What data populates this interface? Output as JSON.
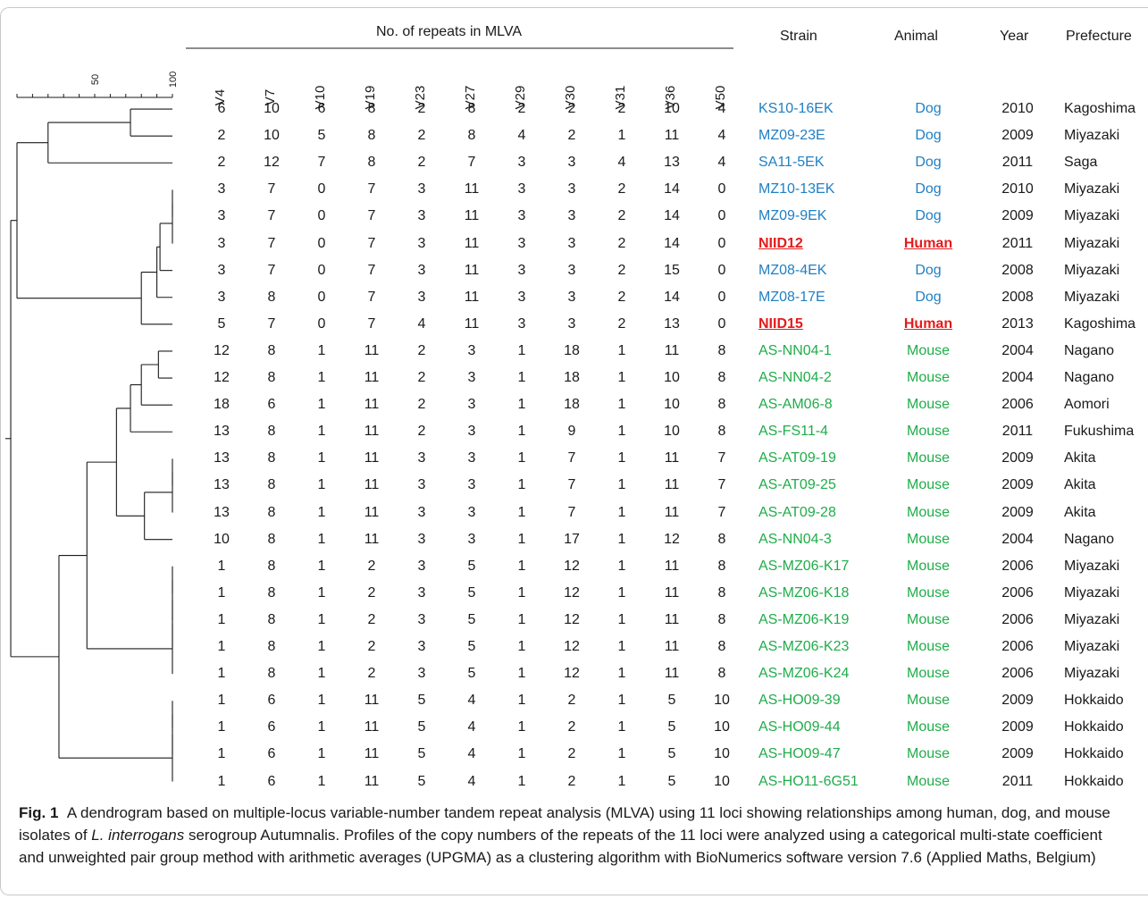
{
  "header": {
    "group_title": "No. of repeats in MLVA",
    "strain": "Strain",
    "animal": "Animal",
    "year": "Year",
    "prefecture": "Prefecture"
  },
  "scale": {
    "labels": [
      "50",
      "100"
    ]
  },
  "loci": [
    "V4",
    "V7",
    "V10",
    "V19",
    "V23",
    "V27",
    "V29",
    "V30",
    "V31",
    "V36",
    "V50"
  ],
  "colors": {
    "Dog": "#1f7fc4",
    "Human": "#e41b1b",
    "Mouse": "#1fad4a"
  },
  "rows": [
    {
      "values": [
        6,
        10,
        6,
        8,
        2,
        8,
        2,
        2,
        2,
        10,
        4
      ],
      "strain": "KS10-16EK",
      "animal": "Dog",
      "year": "2010",
      "prefecture": "Kagoshima"
    },
    {
      "values": [
        2,
        10,
        5,
        8,
        2,
        8,
        4,
        2,
        1,
        11,
        4
      ],
      "strain": "MZ09-23E",
      "animal": "Dog",
      "year": "2009",
      "prefecture": "Miyazaki"
    },
    {
      "values": [
        2,
        12,
        7,
        8,
        2,
        7,
        3,
        3,
        4,
        13,
        4
      ],
      "strain": "SA11-5EK",
      "animal": "Dog",
      "year": "2011",
      "prefecture": "Saga"
    },
    {
      "values": [
        3,
        7,
        0,
        7,
        3,
        11,
        3,
        3,
        2,
        14,
        0
      ],
      "strain": "MZ10-13EK",
      "animal": "Dog",
      "year": "2010",
      "prefecture": "Miyazaki"
    },
    {
      "values": [
        3,
        7,
        0,
        7,
        3,
        11,
        3,
        3,
        2,
        14,
        0
      ],
      "strain": "MZ09-9EK",
      "animal": "Dog",
      "year": "2009",
      "prefecture": "Miyazaki"
    },
    {
      "values": [
        3,
        7,
        0,
        7,
        3,
        11,
        3,
        3,
        2,
        14,
        0
      ],
      "strain": "NIID12",
      "animal": "Human",
      "year": "2011",
      "prefecture": "Miyazaki"
    },
    {
      "values": [
        3,
        7,
        0,
        7,
        3,
        11,
        3,
        3,
        2,
        15,
        0
      ],
      "strain": "MZ08-4EK",
      "animal": "Dog",
      "year": "2008",
      "prefecture": "Miyazaki"
    },
    {
      "values": [
        3,
        8,
        0,
        7,
        3,
        11,
        3,
        3,
        2,
        14,
        0
      ],
      "strain": "MZ08-17E",
      "animal": "Dog",
      "year": "2008",
      "prefecture": "Miyazaki"
    },
    {
      "values": [
        5,
        7,
        0,
        7,
        4,
        11,
        3,
        3,
        2,
        13,
        0
      ],
      "strain": "NIID15",
      "animal": "Human",
      "year": "2013",
      "prefecture": "Kagoshima"
    },
    {
      "values": [
        12,
        8,
        1,
        11,
        2,
        3,
        1,
        18,
        1,
        11,
        8
      ],
      "strain": "AS-NN04-1",
      "animal": "Mouse",
      "year": "2004",
      "prefecture": "Nagano"
    },
    {
      "values": [
        12,
        8,
        1,
        11,
        2,
        3,
        1,
        18,
        1,
        10,
        8
      ],
      "strain": "AS-NN04-2",
      "animal": "Mouse",
      "year": "2004",
      "prefecture": "Nagano"
    },
    {
      "values": [
        18,
        6,
        1,
        11,
        2,
        3,
        1,
        18,
        1,
        10,
        8
      ],
      "strain": "AS-AM06-8",
      "animal": "Mouse",
      "year": "2006",
      "prefecture": "Aomori"
    },
    {
      "values": [
        13,
        8,
        1,
        11,
        2,
        3,
        1,
        9,
        1,
        10,
        8
      ],
      "strain": "AS-FS11-4",
      "animal": "Mouse",
      "year": "2011",
      "prefecture": "Fukushima"
    },
    {
      "values": [
        13,
        8,
        1,
        11,
        3,
        3,
        1,
        7,
        1,
        11,
        7
      ],
      "strain": "AS-AT09-19",
      "animal": "Mouse",
      "year": "2009",
      "prefecture": "Akita"
    },
    {
      "values": [
        13,
        8,
        1,
        11,
        3,
        3,
        1,
        7,
        1,
        11,
        7
      ],
      "strain": "AS-AT09-25",
      "animal": "Mouse",
      "year": "2009",
      "prefecture": "Akita"
    },
    {
      "values": [
        13,
        8,
        1,
        11,
        3,
        3,
        1,
        7,
        1,
        11,
        7
      ],
      "strain": "AS-AT09-28",
      "animal": "Mouse",
      "year": "2009",
      "prefecture": "Akita"
    },
    {
      "values": [
        10,
        8,
        1,
        11,
        3,
        3,
        1,
        17,
        1,
        12,
        8
      ],
      "strain": "AS-NN04-3",
      "animal": "Mouse",
      "year": "2004",
      "prefecture": "Nagano"
    },
    {
      "values": [
        1,
        8,
        1,
        2,
        3,
        5,
        1,
        12,
        1,
        11,
        8
      ],
      "strain": "AS-MZ06-K17",
      "animal": "Mouse",
      "year": "2006",
      "prefecture": "Miyazaki"
    },
    {
      "values": [
        1,
        8,
        1,
        2,
        3,
        5,
        1,
        12,
        1,
        11,
        8
      ],
      "strain": "AS-MZ06-K18",
      "animal": "Mouse",
      "year": "2006",
      "prefecture": "Miyazaki"
    },
    {
      "values": [
        1,
        8,
        1,
        2,
        3,
        5,
        1,
        12,
        1,
        11,
        8
      ],
      "strain": "AS-MZ06-K19",
      "animal": "Mouse",
      "year": "2006",
      "prefecture": "Miyazaki"
    },
    {
      "values": [
        1,
        8,
        1,
        2,
        3,
        5,
        1,
        12,
        1,
        11,
        8
      ],
      "strain": "AS-MZ06-K23",
      "animal": "Mouse",
      "year": "2006",
      "prefecture": "Miyazaki"
    },
    {
      "values": [
        1,
        8,
        1,
        2,
        3,
        5,
        1,
        12,
        1,
        11,
        8
      ],
      "strain": "AS-MZ06-K24",
      "animal": "Mouse",
      "year": "2006",
      "prefecture": "Miyazaki"
    },
    {
      "values": [
        1,
        6,
        1,
        11,
        5,
        4,
        1,
        2,
        1,
        5,
        10
      ],
      "strain": "AS-HO09-39",
      "animal": "Mouse",
      "year": "2009",
      "prefecture": "Hokkaido"
    },
    {
      "values": [
        1,
        6,
        1,
        11,
        5,
        4,
        1,
        2,
        1,
        5,
        10
      ],
      "strain": "AS-HO09-44",
      "animal": "Mouse",
      "year": "2009",
      "prefecture": "Hokkaido"
    },
    {
      "values": [
        1,
        6,
        1,
        11,
        5,
        4,
        1,
        2,
        1,
        5,
        10
      ],
      "strain": "AS-HO09-47",
      "animal": "Mouse",
      "year": "2009",
      "prefecture": "Hokkaido"
    },
    {
      "values": [
        1,
        6,
        1,
        11,
        5,
        4,
        1,
        2,
        1,
        5,
        10
      ],
      "strain": "AS-HO11-6G51",
      "animal": "Mouse",
      "year": "2011",
      "prefecture": "Hokkaido"
    }
  ],
  "dendrogram": {
    "merges": [
      {
        "a": 0,
        "b": 1,
        "similarity": 73
      },
      {
        "a": 26,
        "b": 2,
        "similarity": 20
      },
      {
        "a": 3,
        "b": 4,
        "similarity": 100
      },
      {
        "a": 28,
        "b": 5,
        "similarity": 100
      },
      {
        "a": 29,
        "b": 6,
        "similarity": 92
      },
      {
        "a": 30,
        "b": 7,
        "similarity": 90
      },
      {
        "a": 31,
        "b": 8,
        "similarity": 80
      },
      {
        "a": 27,
        "b": 32,
        "similarity": 0
      },
      {
        "a": 9,
        "b": 10,
        "similarity": 91
      },
      {
        "a": 34,
        "b": 11,
        "similarity": 80
      },
      {
        "a": 35,
        "b": 12,
        "similarity": 73
      },
      {
        "a": 13,
        "b": 14,
        "similarity": 100
      },
      {
        "a": 37,
        "b": 15,
        "similarity": 100
      },
      {
        "a": 38,
        "b": 16,
        "similarity": 82
      },
      {
        "a": 36,
        "b": 39,
        "similarity": 64
      },
      {
        "a": 17,
        "b": 18,
        "similarity": 100
      },
      {
        "a": 41,
        "b": 19,
        "similarity": 100
      },
      {
        "a": 42,
        "b": 20,
        "similarity": 100
      },
      {
        "a": 43,
        "b": 21,
        "similarity": 100
      },
      {
        "a": 40,
        "b": 44,
        "similarity": 45
      },
      {
        "a": 22,
        "b": 23,
        "similarity": 100
      },
      {
        "a": 46,
        "b": 24,
        "similarity": 100
      },
      {
        "a": 47,
        "b": 25,
        "similarity": 100
      },
      {
        "a": 45,
        "b": 48,
        "similarity": 27
      },
      {
        "a": 33,
        "b": 49,
        "similarity": -4
      }
    ]
  },
  "caption": {
    "label": "Fig. 1",
    "text_before": "A dendrogram based on multiple-locus variable-number tandem repeat analysis (MLVA) using 11 loci showing relationships among human, dog, and mouse isolates of ",
    "species": "L. interrogans",
    "text_after": " serogroup Autumnalis. Profiles of the copy numbers of the repeats of the 11 loci were analyzed using a categorical multi-state coefficient and unweighted pair group method with arithmetic averages (UPGMA) as a clustering algorithm with BioNumerics software version 7.6 (Applied Maths, Belgium)"
  }
}
